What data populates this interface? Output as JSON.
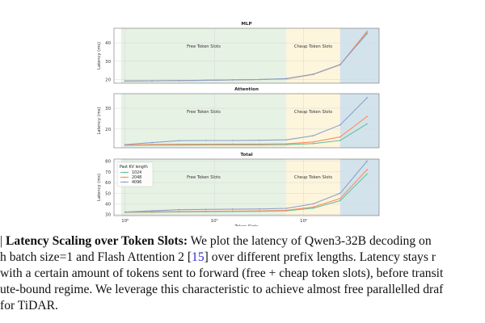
{
  "chart_data": [
    {
      "type": "line",
      "title": "MLP",
      "ylabel": "Latency (ms)",
      "x": [
        1,
        2,
        4,
        8,
        16,
        32,
        64,
        128,
        256,
        512
      ],
      "xscale": "log",
      "ylim": [
        18,
        48
      ],
      "yticks": [
        20,
        30,
        40
      ],
      "regions": [
        {
          "label": "Free Token Slots",
          "range": [
            0.9,
            64
          ],
          "color": "#e6f2e4"
        },
        {
          "label": "Cheap Token Slots",
          "range": [
            64,
            256
          ],
          "color": "#fdf5dc"
        },
        {
          "label": "",
          "range": [
            256,
            700
          ],
          "color": "#d3e3ec"
        }
      ],
      "series": [
        {
          "name": "1024",
          "color": "#66c2a5",
          "values": [
            19.2,
            19.3,
            19.4,
            19.6,
            19.8,
            20.0,
            20.4,
            22.8,
            28.0,
            45.8
          ]
        },
        {
          "name": "2048",
          "color": "#fc8d62",
          "values": [
            19.2,
            19.3,
            19.4,
            19.6,
            19.8,
            20.0,
            20.4,
            22.8,
            28.1,
            46.3
          ]
        },
        {
          "name": "4096",
          "color": "#8da0cb",
          "values": [
            19.2,
            19.3,
            19.4,
            19.6,
            19.8,
            20.0,
            20.5,
            22.9,
            28.2,
            45.0
          ]
        }
      ],
      "grid": true
    },
    {
      "type": "line",
      "title": "Attention",
      "ylabel": "Latency (ms)",
      "x": [
        1,
        2,
        4,
        8,
        16,
        32,
        64,
        128,
        256,
        512
      ],
      "xscale": "log",
      "ylim": [
        11,
        37
      ],
      "yticks": [
        20,
        30
      ],
      "regions": [
        {
          "label": "Free Token Slots",
          "range": [
            0.9,
            64
          ],
          "color": "#e6f2e4"
        },
        {
          "label": "Cheap Token Slots",
          "range": [
            64,
            256
          ],
          "color": "#fdf5dc"
        },
        {
          "label": "",
          "range": [
            256,
            700
          ],
          "color": "#d3e3ec"
        }
      ],
      "series": [
        {
          "name": "1024",
          "color": "#66c2a5",
          "values": [
            12.2,
            12.3,
            12.3,
            12.4,
            12.4,
            12.4,
            12.5,
            13.0,
            14.5,
            22.5
          ]
        },
        {
          "name": "2048",
          "color": "#fc8d62",
          "values": [
            12.3,
            12.6,
            12.7,
            12.7,
            12.8,
            12.8,
            12.9,
            13.8,
            16.2,
            26.0
          ]
        },
        {
          "name": "4096",
          "color": "#8da0cb",
          "values": [
            12.5,
            13.5,
            14.4,
            14.5,
            14.5,
            14.6,
            14.8,
            16.8,
            22.0,
            35.0
          ]
        }
      ],
      "grid": true
    },
    {
      "type": "line",
      "title": "Total",
      "ylabel": "Latency (ms)",
      "xlabel": "Token Slots",
      "x": [
        1,
        2,
        4,
        8,
        16,
        32,
        64,
        128,
        256,
        512
      ],
      "xscale": "log",
      "xticks": [
        "10⁰",
        "10¹",
        "10²"
      ],
      "ylim": [
        29,
        82
      ],
      "yticks": [
        30,
        40,
        50,
        60,
        70,
        80
      ],
      "regions": [
        {
          "label": "Free Token Slots",
          "range": [
            0.9,
            64
          ],
          "color": "#e6f2e4"
        },
        {
          "label": "Cheap Token Slots",
          "range": [
            64,
            256
          ],
          "color": "#fdf5dc"
        },
        {
          "label": "",
          "range": [
            256,
            700
          ],
          "color": "#d3e3ec"
        }
      ],
      "legend": {
        "title": "Past KV length",
        "placement": "upper-left"
      },
      "series": [
        {
          "name": "1024",
          "color": "#66c2a5",
          "values": [
            32.0,
            32.2,
            32.4,
            32.6,
            32.8,
            33.0,
            33.5,
            36.0,
            43.0,
            68.0
          ]
        },
        {
          "name": "2048",
          "color": "#fc8d62",
          "values": [
            32.2,
            32.6,
            32.8,
            33.0,
            33.2,
            33.4,
            34.0,
            37.0,
            45.0,
            72.0
          ]
        },
        {
          "name": "4096",
          "color": "#8da0cb",
          "values": [
            32.4,
            33.5,
            34.5,
            34.8,
            35.0,
            35.2,
            35.8,
            40.0,
            50.0,
            80.0
          ]
        }
      ],
      "grid": true
    }
  ],
  "caption": {
    "line1_prefix": "| ",
    "line1_bold": "Latency Scaling over Token Slots:",
    "line1_rest": " We plot the latency of Qwen3-32B decoding on",
    "line2_a": "h batch size=1 and Flash Attention 2 [",
    "line2_ref": "15",
    "line2_b": "] over different prefix lengths.  Latency stays r",
    "line3": "with a certain amount of tokens sent to forward (free + cheap token slots), before transit",
    "line4": "ute-bound regime. We leverage this characteristic to achieve almost free parallelled draf",
    "line5": " for TiDAR."
  }
}
